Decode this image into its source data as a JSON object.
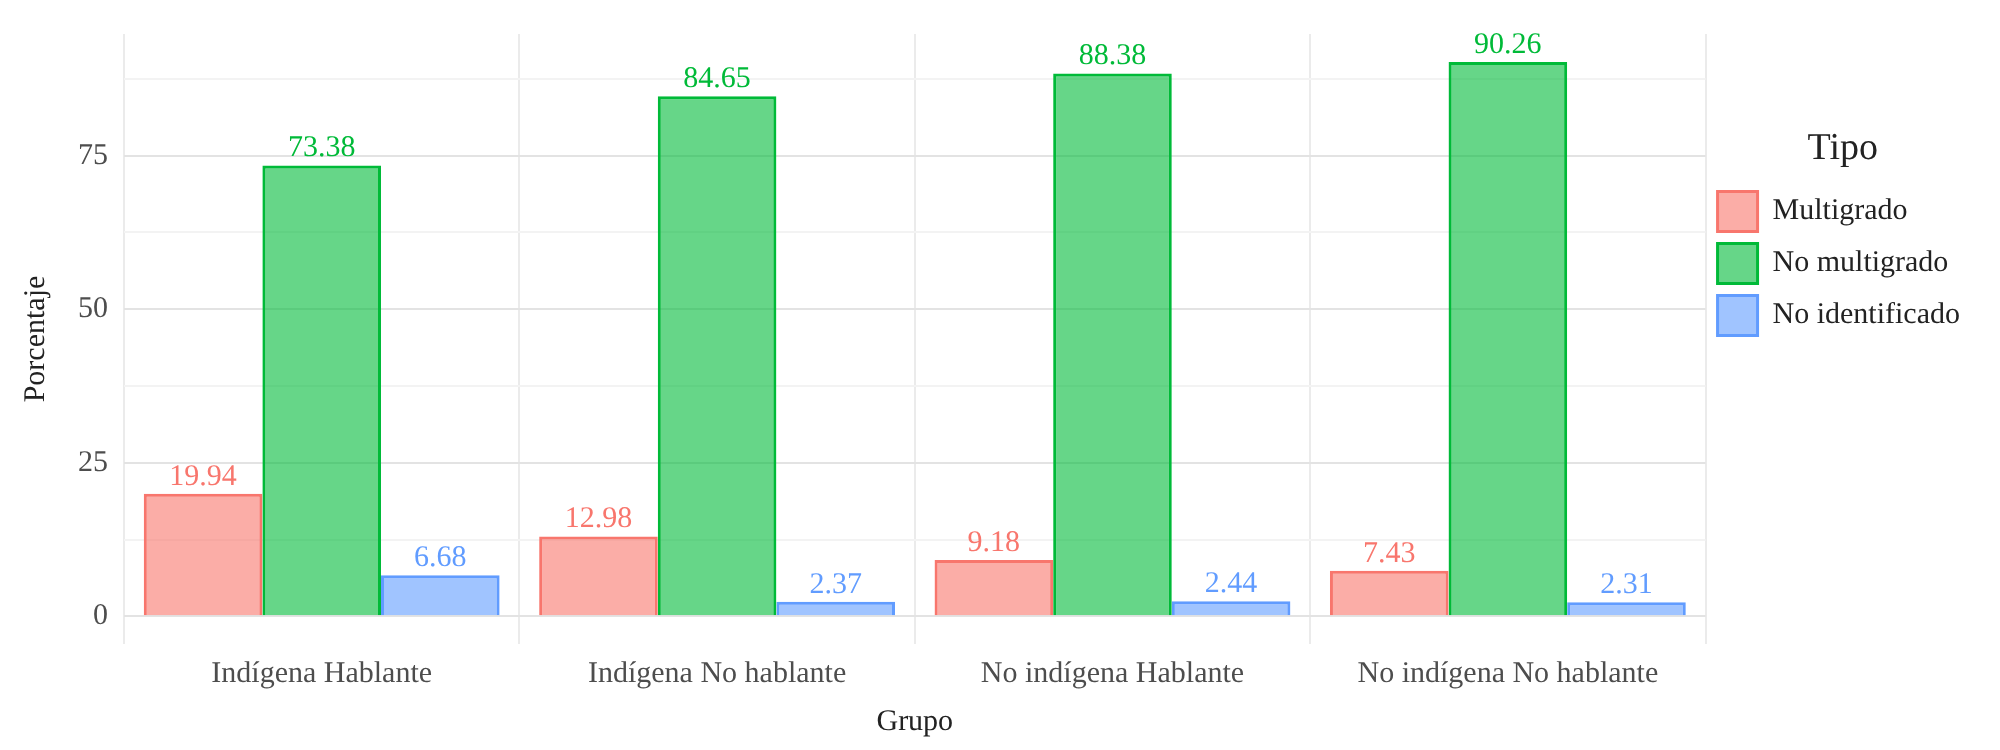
{
  "chart_data": {
    "type": "bar",
    "xlabel": "Grupo",
    "ylabel": "Porcentaje",
    "legend_title": "Tipo",
    "categories": [
      "Indígena Hablante",
      "Indígena No hablante",
      "No indígena Hablante",
      "No indígena No hablante"
    ],
    "series": [
      {
        "name": "Multigrado",
        "color": "#f8766d",
        "values": [
          19.94,
          12.98,
          9.18,
          7.43
        ]
      },
      {
        "name": "No multigrado",
        "color": "#00ba38",
        "values": [
          73.38,
          84.65,
          88.38,
          90.26
        ]
      },
      {
        "name": "No identificado",
        "color": "#619cff",
        "values": [
          6.68,
          2.37,
          2.44,
          2.31
        ]
      }
    ],
    "ylim": [
      -4.5,
      94.8
    ],
    "yticks": [
      0,
      {
        "value": 12.5,
        "label": null
      },
      25,
      {
        "value": 37.5,
        "label": null
      },
      50,
      {
        "value": 62.5,
        "label": null
      },
      75,
      {
        "value": 87.5,
        "label": null
      }
    ],
    "grid": true,
    "legend": "right",
    "data_labels": true
  }
}
